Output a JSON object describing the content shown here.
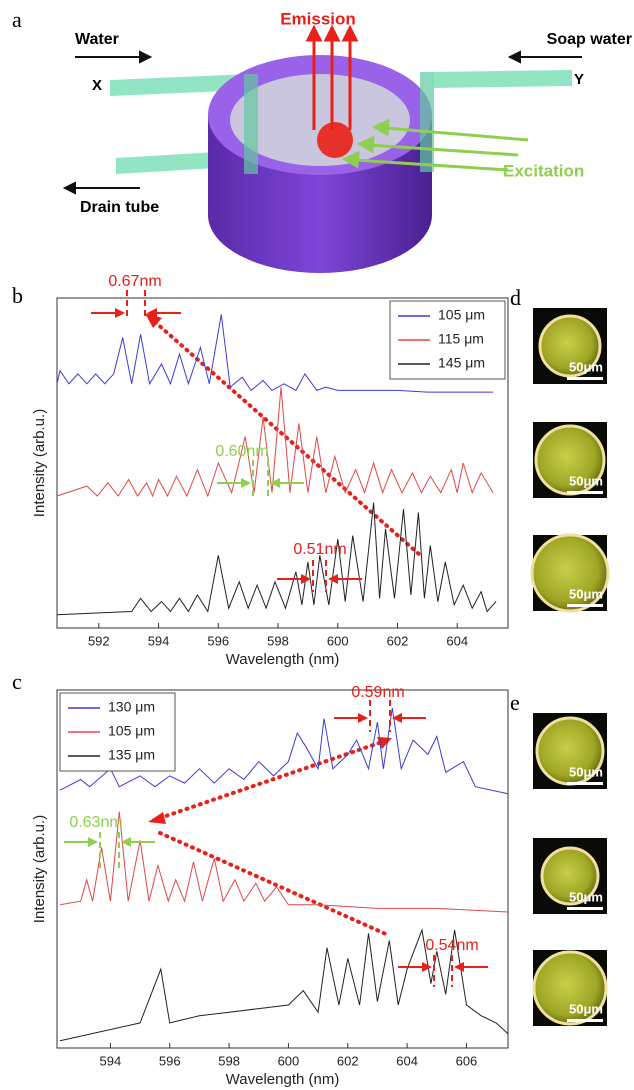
{
  "labels": {
    "a": "a",
    "b": "b",
    "c": "c",
    "d": "d",
    "e": "e"
  },
  "schematic": {
    "emission": "Emission",
    "water": "Water",
    "soap_water": "Soap water",
    "x": "X",
    "y": "Y",
    "excitation": "Excitation",
    "drain_tube": "Drain tube"
  },
  "micrographs": {
    "d": [
      "50μm",
      "50μm",
      "50μm"
    ],
    "e": [
      "50μm",
      "50μm",
      "50μm"
    ]
  },
  "chart_data": [
    {
      "type": "line",
      "xlabel": "Wavelength (nm)",
      "ylabel": "Intensity (arb.u.)",
      "xlim": [
        590.6,
        605.7
      ],
      "ylim": [
        0,
        100
      ],
      "xticks": [
        592,
        594,
        596,
        598,
        600,
        602,
        604
      ],
      "legend": "upper right",
      "series": [
        {
          "name": "105 μm",
          "color": "#3b3bd6",
          "x": [
            590.6,
            590.7,
            591.0,
            591.3,
            591.6,
            591.9,
            592.2,
            592.5,
            592.8,
            593.1,
            593.4,
            593.7,
            594.1,
            594.4,
            594.7,
            595.0,
            595.4,
            595.7,
            596.1,
            596.4,
            596.8,
            597.1,
            597.5,
            597.8,
            598.2,
            598.6,
            598.9,
            599.3,
            599.6,
            600.0,
            601,
            602,
            603,
            604,
            605.2
          ],
          "values": [
            74,
            78,
            74,
            77,
            74,
            77,
            74,
            77,
            88,
            74,
            89,
            74,
            80,
            74,
            83,
            74,
            85,
            74,
            95,
            73,
            76,
            72,
            75,
            72,
            74,
            72,
            77,
            72,
            73,
            72,
            72,
            72,
            71.5,
            71.5,
            71.5
          ]
        },
        {
          "name": "115 μm",
          "color": "#e04848",
          "x": [
            590.6,
            591.6,
            591.95,
            592.3,
            592.65,
            593.0,
            593.3,
            593.6,
            593.8,
            594.0,
            594.3,
            594.6,
            594.95,
            595.3,
            595.65,
            596.0,
            596.45,
            596.9,
            597.2,
            597.5,
            597.8,
            598.1,
            598.4,
            598.7,
            599.0,
            599.3,
            599.6,
            599.9,
            600.25,
            600.6,
            600.9,
            601.2,
            601.5,
            601.8,
            602.15,
            602.5,
            602.8,
            603.1,
            603.45,
            603.8,
            604.0,
            604.2,
            604.5,
            604.8,
            605.2
          ],
          "values": [
            40,
            43,
            40,
            44,
            40,
            45,
            40,
            44,
            40,
            45,
            40,
            46,
            40,
            48,
            40,
            50,
            41,
            58,
            41,
            64,
            41,
            73,
            41,
            62,
            41,
            58,
            41,
            52,
            41,
            48,
            41,
            50,
            41,
            48,
            41,
            47,
            41,
            46,
            41,
            48,
            41,
            50,
            41,
            47,
            41
          ]
        },
        {
          "name": "145 μm",
          "color": "#222222",
          "x": [
            590.6,
            593.1,
            593.4,
            593.75,
            594.1,
            594.4,
            594.7,
            595.0,
            595.3,
            595.65,
            596.0,
            596.35,
            596.7,
            597.0,
            597.3,
            597.6,
            597.9,
            598.25,
            598.6,
            598.8,
            599.0,
            599.2,
            599.4,
            599.7,
            600.0,
            600.25,
            600.5,
            600.85,
            601.2,
            601.4,
            601.6,
            601.9,
            602.2,
            602.45,
            602.7,
            602.9,
            603.1,
            603.35,
            603.6,
            603.9,
            604.2,
            604.5,
            604.8,
            605.0,
            605.3
          ],
          "values": [
            4,
            5,
            9,
            5,
            8,
            5,
            9,
            5,
            10,
            5,
            22,
            6,
            14,
            6,
            13,
            6,
            14,
            6,
            17,
            7,
            20,
            7,
            22,
            7,
            27,
            8,
            28,
            8,
            38,
            9,
            30,
            9,
            36,
            10,
            35,
            9,
            25,
            8,
            20,
            7,
            13,
            6,
            11,
            5,
            8
          ]
        }
      ],
      "annotations": [
        {
          "text": "0.67nm",
          "color": "#e8201a"
        },
        {
          "text": "0.60nm",
          "color": "#8fcf4f"
        },
        {
          "text": "0.51nm",
          "color": "#e8201a"
        }
      ]
    },
    {
      "type": "line",
      "xlabel": "Wavelength (nm)",
      "ylabel": "Intensity (arb.u.)",
      "xlim": [
        592.2,
        607.4
      ],
      "ylim": [
        0,
        100
      ],
      "xticks": [
        594,
        596,
        598,
        600,
        602,
        604,
        606
      ],
      "legend": "upper left",
      "series": [
        {
          "name": "130 μm",
          "color": "#3b3bd6",
          "x": [
            592.3,
            593,
            593.3,
            594,
            594.3,
            595,
            595.5,
            596,
            596.5,
            597,
            597.5,
            598,
            598.5,
            599,
            599.5,
            600,
            600.3,
            600.6,
            601,
            601.2,
            601.5,
            602,
            602.3,
            602.7,
            603,
            603.2,
            603.5,
            603.8,
            604.2,
            604.7,
            605,
            605.3,
            605.9,
            606.3,
            607.4
          ],
          "values": [
            72,
            75,
            73,
            78,
            73,
            76,
            73,
            76,
            74,
            78,
            74,
            78,
            75,
            80,
            76,
            80,
            88,
            84,
            78,
            92,
            78,
            82,
            86,
            78,
            91,
            78,
            95,
            78,
            86,
            82,
            87,
            77,
            80,
            73,
            71
          ]
        },
        {
          "name": "105 μm",
          "color": "#e04848",
          "x": [
            592.3,
            593.0,
            593.2,
            593.4,
            593.7,
            594.0,
            594.3,
            594.6,
            595.0,
            595.3,
            595.6,
            595.95,
            596.2,
            596.5,
            596.8,
            597.1,
            597.5,
            597.8,
            598.2,
            598.5,
            598.9,
            599.2,
            599.6,
            600,
            601,
            603,
            605,
            607.4
          ],
          "values": [
            40,
            41,
            47,
            41,
            56,
            41,
            66,
            41,
            58,
            41,
            51,
            41,
            47,
            41,
            52,
            41,
            53,
            41,
            47,
            41,
            46,
            41,
            45,
            40,
            40,
            39,
            39,
            38
          ]
        },
        {
          "name": "135 μm",
          "color": "#222222",
          "x": [
            592.3,
            595,
            595.7,
            596,
            597,
            598,
            599,
            600,
            600.5,
            601,
            601.3,
            601.7,
            602,
            602.4,
            602.7,
            603,
            603.4,
            603.7,
            604,
            604.5,
            604.8,
            605,
            605.3,
            605.6,
            606,
            606.5,
            607,
            607.4
          ],
          "values": [
            2,
            7,
            22,
            7,
            9,
            10,
            11,
            12,
            16,
            10,
            28,
            12,
            25,
            12,
            32,
            13,
            30,
            12,
            22,
            33,
            18,
            27,
            15,
            33,
            12,
            9,
            7,
            4
          ]
        }
      ],
      "annotations": [
        {
          "text": "0.59nm",
          "color": "#e8201a"
        },
        {
          "text": "0.63nm",
          "color": "#8fcf4f"
        },
        {
          "text": "0.54nm",
          "color": "#e8201a"
        }
      ]
    }
  ]
}
